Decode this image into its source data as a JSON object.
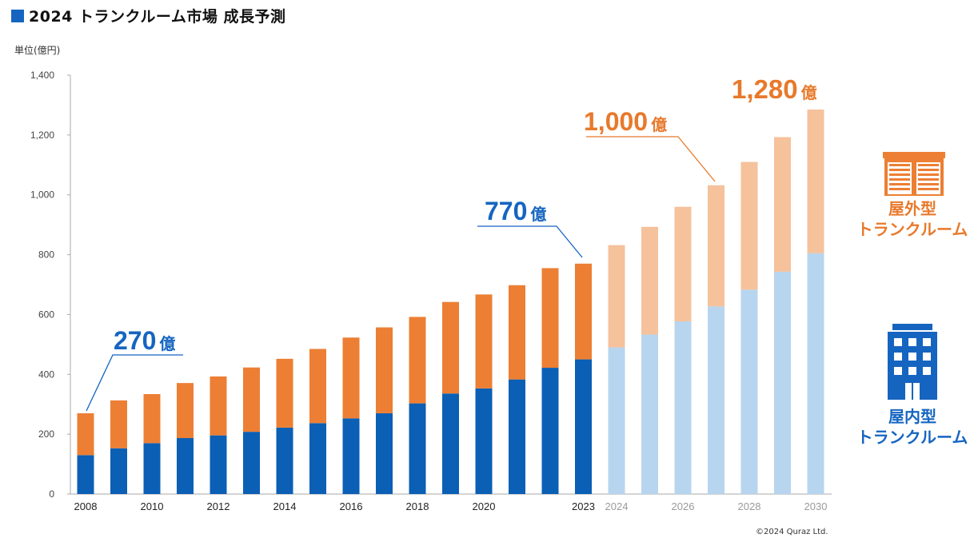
{
  "title": "2024 トランクルーム市場 成長予測",
  "unit_label": "単位(億円)",
  "copyright": "©2024 Quraz Ltd.",
  "colors": {
    "indoor_actual": "#0b5fb5",
    "outdoor_actual": "#ec7f34",
    "indoor_forecast": "#b7d5ee",
    "outdoor_forecast": "#f5c29c",
    "title_square": "#1565c0",
    "callout_blue": "#1565c0",
    "callout_orange": "#e8792b"
  },
  "legend": {
    "outdoor": {
      "line1": "屋外型",
      "line2": "トランクルーム",
      "icon": "storage-unit-icon"
    },
    "indoor": {
      "line1": "屋内型",
      "line2": "トランクルーム",
      "icon": "building-icon"
    }
  },
  "chart_data": {
    "type": "bar",
    "stacked": true,
    "ylim": [
      0,
      1400
    ],
    "yticks": [
      "0",
      "200",
      "400",
      "600",
      "800",
      "1,000",
      "1,200",
      "1,400"
    ],
    "ytick_values": [
      0,
      200,
      400,
      600,
      800,
      1000,
      1200,
      1400
    ],
    "x": [
      2008,
      2009,
      2010,
      2011,
      2012,
      2013,
      2014,
      2015,
      2016,
      2017,
      2018,
      2019,
      2020,
      2021,
      2022,
      2023,
      2024,
      2025,
      2026,
      2027,
      2028,
      2029,
      2030
    ],
    "x_tick_labels": [
      "2008",
      "",
      "2010",
      "",
      "2012",
      "",
      "2014",
      "",
      "2016",
      "",
      "2018",
      "",
      "2020",
      "",
      "",
      "2023",
      "2024",
      "",
      "2026",
      "",
      "2028",
      "",
      "2030"
    ],
    "forecast_from": 2024,
    "series": [
      {
        "name": "屋内型トランクルーム",
        "values": [
          130,
          153,
          170,
          187,
          196,
          208,
          222,
          237,
          253,
          270,
          303,
          336,
          353,
          383,
          422,
          450,
          490,
          533,
          577,
          627,
          683,
          743,
          805
        ]
      },
      {
        "name": "屋外型トランクルーム",
        "values": [
          140,
          160,
          164,
          184,
          197,
          215,
          230,
          248,
          270,
          287,
          289,
          306,
          314,
          315,
          333,
          320,
          342,
          360,
          383,
          405,
          427,
          450,
          480
        ]
      }
    ],
    "annotations": [
      {
        "year": 2008,
        "number": "270",
        "suffix": "億",
        "color": "blue"
      },
      {
        "year": 2023,
        "number": "770",
        "suffix": "億",
        "color": "blue"
      },
      {
        "year": 2027,
        "number": "1,000",
        "suffix": "億",
        "color": "orange"
      },
      {
        "year": 2030,
        "number": "1,280",
        "suffix": "億",
        "color": "orange"
      }
    ]
  }
}
